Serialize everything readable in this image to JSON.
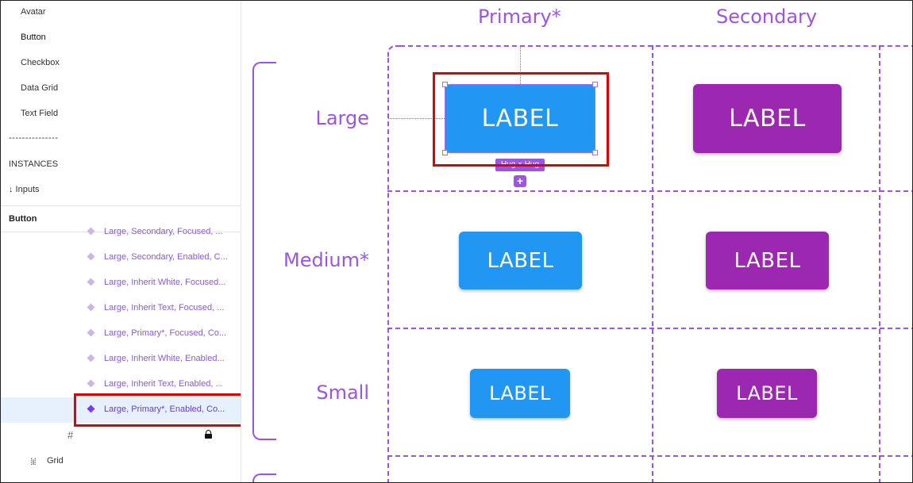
{
  "sidebar": {
    "pages": [
      {
        "label": "Avatar",
        "active": false
      },
      {
        "label": "Button",
        "active": true
      },
      {
        "label": "Checkbox",
        "active": false
      },
      {
        "label": "Data Grid",
        "active": false
      },
      {
        "label": "Text Field",
        "active": false
      }
    ],
    "separator": "---------------",
    "instances_label": "INSTANCES",
    "inputs_item": "↓ Inputs",
    "section_title": "Button",
    "layers": [
      "Large, Secondary, Focused, ...",
      "Large, Secondary, Enabled, C...",
      "Large, Inherit White, Focused...",
      "Large, Inherit Text, Focused, ...",
      "Large, Primary*, Focused, Co...",
      "Large, Inherit White, Enabled...",
      "Large, Inherit Text, Enabled, ...",
      "Large, Primary*, Enabled, Co..."
    ],
    "selected_layer_index": 7,
    "grid_icon": "#",
    "grid_row_icon": "⁞ı⁞",
    "grid_label": "Grid"
  },
  "canvas": {
    "columns": [
      "Primary*",
      "Secondary"
    ],
    "rows": [
      "Large",
      "Medium*",
      "Small"
    ],
    "button_label": "LABEL",
    "hug_badge": "Hug × Hug",
    "plus_icon": "+",
    "colors": {
      "primary": "#2196f3",
      "secondary": "#9c27b0",
      "guide": "#9b55e0",
      "highlight": "#e00000"
    }
  }
}
